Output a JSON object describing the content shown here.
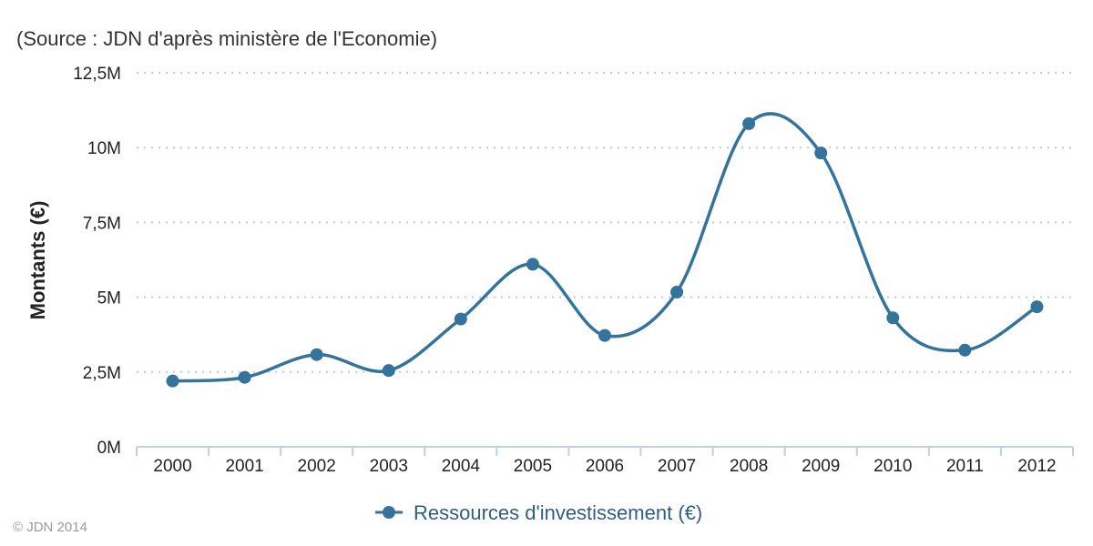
{
  "subtitle": "(Source : JDN d'après ministère de l'Economie)",
  "credits": "© JDN 2014",
  "colors": {
    "series": "#33739c",
    "grid": "#c8c8c8",
    "axis": "#c0d0e0",
    "legend_text": "#2f5f80"
  },
  "chart_data": {
    "type": "line",
    "title": "",
    "subtitle": "(Source : JDN d'après ministère de l'Economie)",
    "xlabel": "",
    "ylabel": "Montants (€)",
    "categories": [
      "2000",
      "2001",
      "2002",
      "2003",
      "2004",
      "2005",
      "2006",
      "2007",
      "2008",
      "2009",
      "2010",
      "2011",
      "2012"
    ],
    "series": [
      {
        "name": "Ressources d'investissement (€)",
        "values": [
          2200000,
          2320000,
          3080000,
          2550000,
          4270000,
          6100000,
          3720000,
          5170000,
          10800000,
          9820000,
          4310000,
          3230000,
          4680000
        ]
      }
    ],
    "ylim": [
      0,
      12500000
    ],
    "yticks": [
      {
        "value": 0,
        "label": "0M"
      },
      {
        "value": 2500000,
        "label": "2,5M"
      },
      {
        "value": 5000000,
        "label": "5M"
      },
      {
        "value": 7500000,
        "label": "7,5M"
      },
      {
        "value": 10000000,
        "label": "10M"
      },
      {
        "value": 12500000,
        "label": "12,5M"
      }
    ],
    "grid": true,
    "legend_position": "bottom-center",
    "smooth": true,
    "markers": true
  }
}
